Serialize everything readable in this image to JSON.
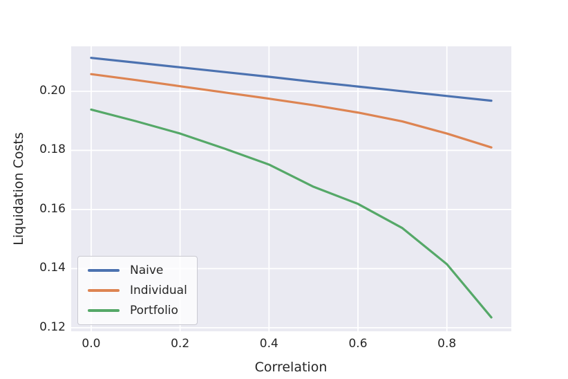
{
  "figure": {
    "background": "#ffffff"
  },
  "chart_data": {
    "type": "line",
    "title": "",
    "xlabel": "Correlation",
    "ylabel": "Liquidation Costs",
    "x": [
      0.0,
      0.1,
      0.2,
      0.3,
      0.4,
      0.5,
      0.6,
      0.7,
      0.8,
      0.9
    ],
    "series": [
      {
        "name": "Naive",
        "color": "#4c72b0",
        "values": [
          0.2113,
          0.2097,
          0.2081,
          0.2065,
          0.2049,
          0.2032,
          0.2016,
          0.2,
          0.1984,
          0.1968
        ]
      },
      {
        "name": "Individual",
        "color": "#dd8452",
        "values": [
          0.2058,
          0.2038,
          0.2017,
          0.1996,
          0.1975,
          0.1953,
          0.1928,
          0.1898,
          0.1857,
          0.181
        ]
      },
      {
        "name": "Portfolio",
        "color": "#55a868",
        "values": [
          0.1938,
          0.1899,
          0.1857,
          0.1806,
          0.1752,
          0.1677,
          0.1619,
          0.1537,
          0.1415,
          0.1235
        ]
      }
    ],
    "xticks": [
      0.0,
      0.2,
      0.4,
      0.6,
      0.8
    ],
    "xtick_labels": [
      "0.0",
      "0.2",
      "0.4",
      "0.6",
      "0.8"
    ],
    "yticks": [
      0.12,
      0.14,
      0.16,
      0.18,
      0.2
    ],
    "ytick_labels": [
      "0.12",
      "0.14",
      "0.16",
      "0.18",
      "0.20"
    ],
    "xlim": [
      -0.045,
      0.945
    ],
    "ylim": [
      0.1188,
      0.2152
    ],
    "grid": true,
    "legend_position": "lower left",
    "style": {
      "plot_background": "#eaeaf2",
      "grid_color": "#ffffff",
      "text_color": "#262626",
      "line_width": 3.2
    }
  }
}
